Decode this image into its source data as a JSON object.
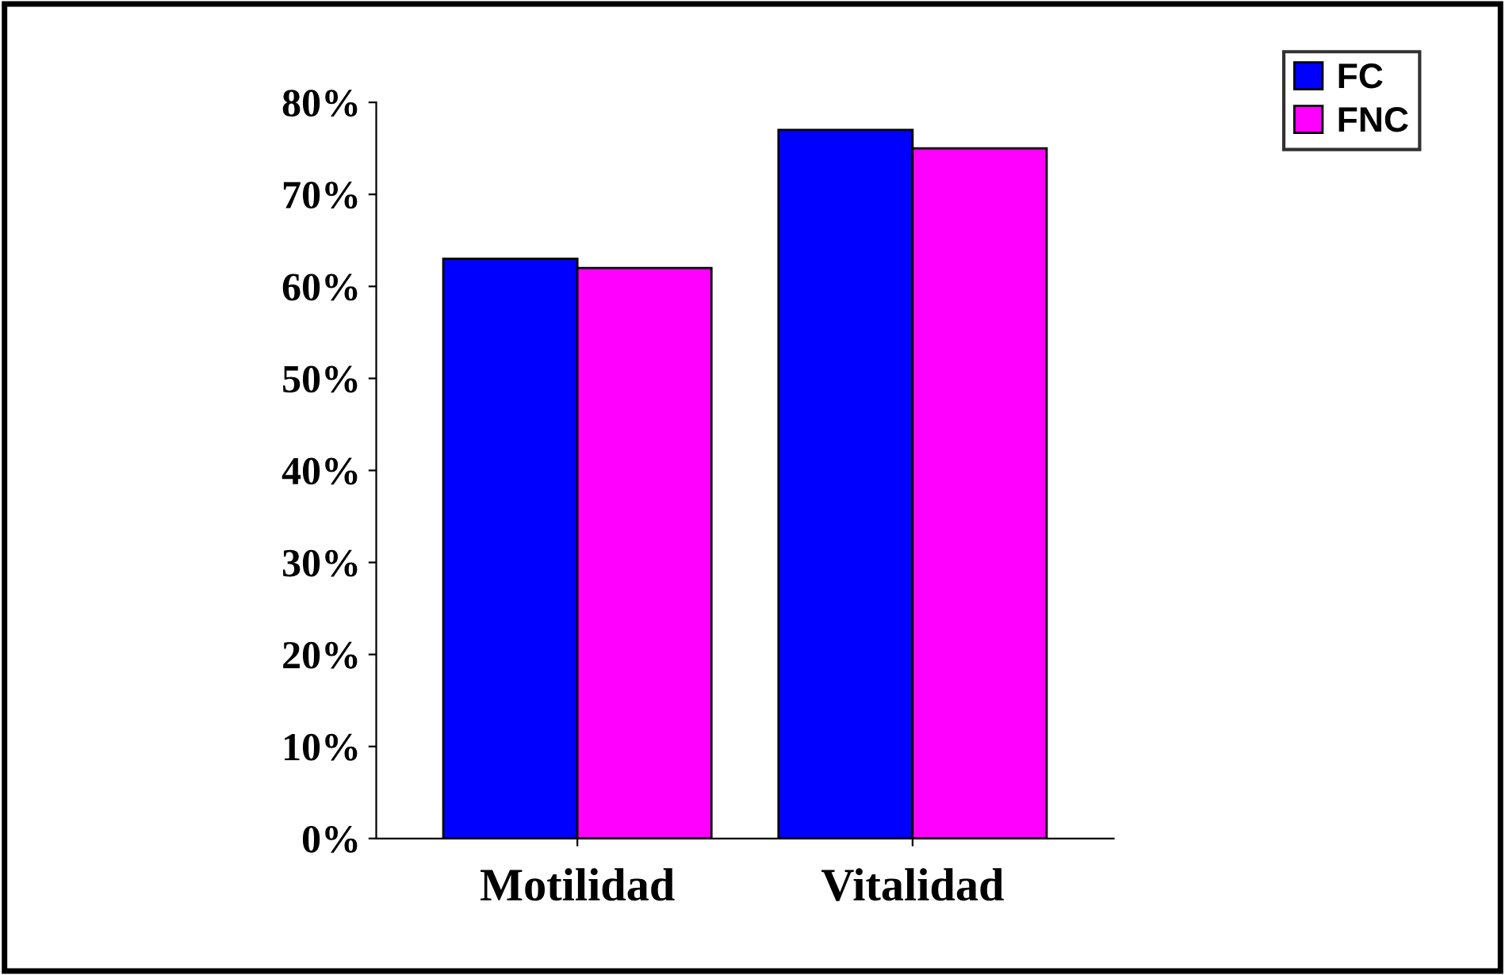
{
  "chart_data": {
    "type": "bar",
    "categories": [
      "Motilidad",
      "Vitalidad"
    ],
    "series": [
      {
        "name": "FC",
        "color": "#0000ff",
        "values": [
          63,
          77
        ]
      },
      {
        "name": "FNC",
        "color": "#ff00ff",
        "values": [
          62,
          75
        ]
      }
    ],
    "ylim": [
      0,
      80
    ],
    "yticks": [
      {
        "value": 0,
        "label": "0%"
      },
      {
        "value": 10,
        "label": "10%"
      },
      {
        "value": 20,
        "label": "20%"
      },
      {
        "value": 30,
        "label": "30%"
      },
      {
        "value": 40,
        "label": "40%"
      },
      {
        "value": 50,
        "label": "50%"
      },
      {
        "value": 60,
        "label": "60%"
      },
      {
        "value": 70,
        "label": "70%"
      },
      {
        "value": 80,
        "label": "80%"
      }
    ],
    "grid": false,
    "legend": "top right"
  }
}
